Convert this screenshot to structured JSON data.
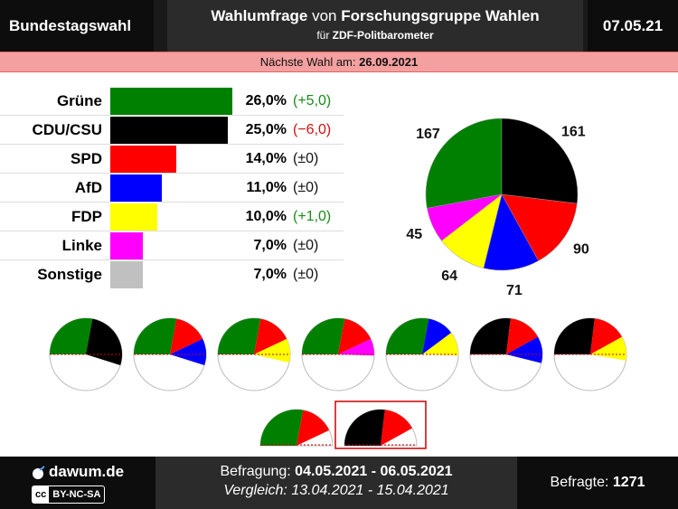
{
  "header": {
    "left_title": "Bundestagswahl",
    "mid_title_bold1": "Wahlumfrage",
    "mid_title_plain": " von ",
    "mid_title_bold2": "Forschungsgruppe Wahlen",
    "mid_sub_plain": "für ",
    "mid_sub_bold": "ZDF-Politbarometer",
    "date": "07.05.21"
  },
  "banner": {
    "label": "Nächste Wahl am: ",
    "value": "26.09.2021"
  },
  "colors": {
    "Grüne": "#008000",
    "CDU/CSU": "#000000",
    "SPD": "#ff0000",
    "AfD": "#0000ff",
    "FDP": "#ffff00",
    "Linke": "#ff00ff",
    "Sonstige": "#c0c0c0"
  },
  "chart_data": [
    {
      "type": "bar",
      "categories": [
        "Grüne",
        "CDU/CSU",
        "SPD",
        "AfD",
        "FDP",
        "Linke",
        "Sonstige"
      ],
      "values": [
        26.0,
        25.0,
        14.0,
        11.0,
        10.0,
        7.0,
        7.0
      ],
      "value_labels": [
        "26,0%",
        "25,0%",
        "14,0%",
        "11,0%",
        "10,0%",
        "7,0%",
        "7,0%"
      ],
      "change_labels": [
        "(+5,0)",
        "(−6,0)",
        "(±0)",
        "(±0)",
        "(+1,0)",
        "(±0)",
        "(±0)"
      ],
      "change_signs": [
        "pos",
        "neg",
        "neu",
        "neu",
        "pos",
        "neu",
        "neu"
      ]
    },
    {
      "type": "pie",
      "categories": [
        "Grüne",
        "CDU/CSU",
        "SPD",
        "AfD",
        "FDP",
        "Linke"
      ],
      "values": [
        167,
        161,
        90,
        71,
        64,
        45
      ],
      "labels": [
        "167",
        "161",
        "90",
        "71",
        "64",
        "45"
      ]
    },
    {
      "type": "pie",
      "subtype": "coalitions",
      "coalitions": [
        [
          "Grüne",
          "CDU/CSU"
        ],
        [
          "Grüne",
          "SPD",
          "AfD"
        ],
        [
          "Grüne",
          "SPD",
          "FDP"
        ],
        [
          "Grüne",
          "SPD",
          "Linke"
        ],
        [
          "Grüne",
          "AfD",
          "FDP"
        ],
        [
          "CDU/CSU",
          "SPD",
          "AfD"
        ],
        [
          "CDU/CSU",
          "SPD",
          "FDP"
        ]
      ],
      "top_coalitions": [
        [
          "Grüne",
          "SPD"
        ],
        [
          "CDU/CSU",
          "SPD"
        ]
      ],
      "highlighted_top": 1
    }
  ],
  "footer": {
    "site": "dawum.de",
    "cc_left": "cc",
    "cc_right": "BY-NC-SA",
    "period_label": "Befragung: ",
    "period_value": "04.05.2021 - 06.05.2021",
    "compare_label": "Vergleich: 13.04.2021 - 15.04.2021",
    "respondents_label": "Befragte: ",
    "respondents_value": "1271"
  }
}
